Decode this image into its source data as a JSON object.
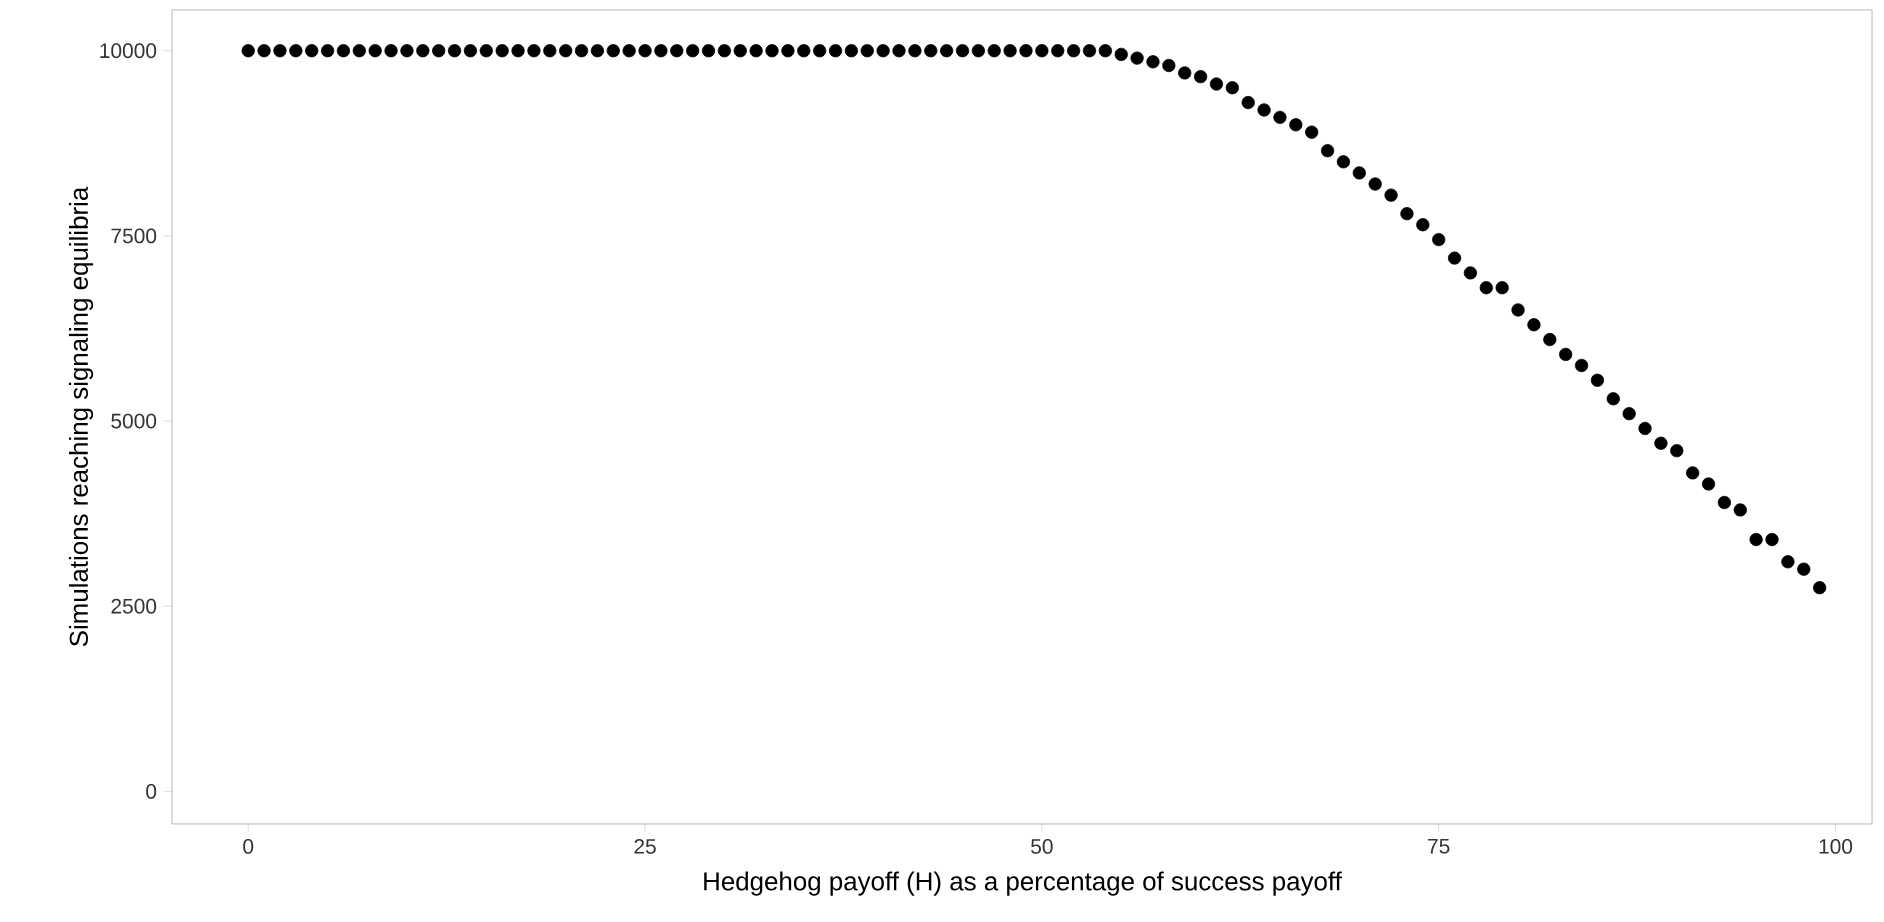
{
  "chart_data": {
    "type": "scatter",
    "xlabel": "Hedgehog payoff (H) as a percentage of success payoff",
    "ylabel": "Simulations reaching signaling equilibria",
    "x": [
      0,
      1,
      2,
      3,
      4,
      5,
      6,
      7,
      8,
      9,
      10,
      11,
      12,
      13,
      14,
      15,
      16,
      17,
      18,
      19,
      20,
      21,
      22,
      23,
      24,
      25,
      26,
      27,
      28,
      29,
      30,
      31,
      32,
      33,
      34,
      35,
      36,
      37,
      38,
      39,
      40,
      41,
      42,
      43,
      44,
      45,
      46,
      47,
      48,
      49,
      50,
      51,
      52,
      53,
      54,
      55,
      56,
      57,
      58,
      59,
      60,
      61,
      62,
      63,
      64,
      65,
      66,
      67,
      68,
      69,
      70,
      71,
      72,
      73,
      74,
      75,
      76,
      77,
      78,
      79,
      80,
      81,
      82,
      83,
      84,
      85,
      86,
      87,
      88,
      89,
      90,
      91,
      92,
      93,
      94,
      95,
      96,
      97,
      98,
      99
    ],
    "series": [
      {
        "color": "#000000",
        "values": [
          10000,
          10000,
          10000,
          10000,
          10000,
          10000,
          10000,
          10000,
          10000,
          10000,
          10000,
          10000,
          10000,
          10000,
          10000,
          10000,
          10000,
          10000,
          10000,
          10000,
          10000,
          10000,
          10000,
          10000,
          10000,
          10000,
          10000,
          10000,
          10000,
          10000,
          10000,
          10000,
          10000,
          10000,
          10000,
          10000,
          10000,
          10000,
          10000,
          10000,
          10000,
          10000,
          10000,
          10000,
          10000,
          10000,
          10000,
          10000,
          10000,
          10000,
          10000,
          10000,
          10000,
          10000,
          10000,
          9950,
          9900,
          9850,
          9800,
          9700,
          9650,
          9550,
          9500,
          9300,
          9200,
          9100,
          9000,
          8900,
          8650,
          8500,
          8350,
          8200,
          8050,
          7800,
          7650,
          7450,
          7200,
          7000,
          6800,
          6800,
          6500,
          6300,
          6100,
          5900,
          5750,
          5550,
          5300,
          5100,
          4900,
          4700,
          4600,
          4300,
          4150,
          3900,
          3800,
          3400,
          3400,
          3100,
          3000,
          2750
        ]
      }
    ],
    "xlim": [
      -4.8,
      102.3
    ],
    "ylim": [
      -440,
      10550
    ],
    "xticks": [
      0,
      25,
      50,
      75,
      100
    ],
    "yticks": [
      0,
      2500,
      5000,
      7500,
      10000
    ],
    "grid": false
  }
}
